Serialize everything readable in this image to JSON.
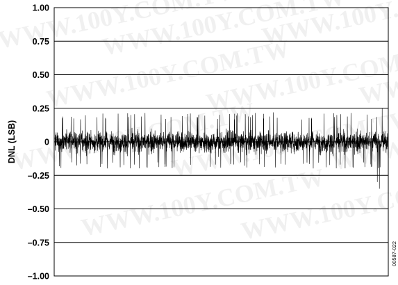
{
  "chart_data": {
    "type": "line",
    "title": "",
    "xlabel": "",
    "ylabel": "DNL (LSB)",
    "ylim": [
      -1.0,
      1.0
    ],
    "yticks": [
      {
        "value": 1.0,
        "label": "1.00"
      },
      {
        "value": 0.75,
        "label": "0.75"
      },
      {
        "value": 0.5,
        "label": "0.50"
      },
      {
        "value": 0.25,
        "label": "0.25"
      },
      {
        "value": 0.0,
        "label": "0"
      },
      {
        "value": -0.25,
        "label": "–0.25"
      },
      {
        "value": -0.5,
        "label": "–0.50"
      },
      {
        "value": -0.75,
        "label": "–0.75"
      },
      {
        "value": -1.0,
        "label": "–1.00"
      }
    ],
    "grid": "horizontal",
    "x_tick_labels": false,
    "series": [
      {
        "noise_band": [
          -0.1,
          0.1
        ],
        "typical_spread": [
          -0.2,
          0.22
        ],
        "max_value": 0.25,
        "min_value": -0.35,
        "color": "#000000"
      }
    ]
  },
  "figure_id": "00587-022",
  "watermark_text": "WWW.100Y.COM.TW"
}
